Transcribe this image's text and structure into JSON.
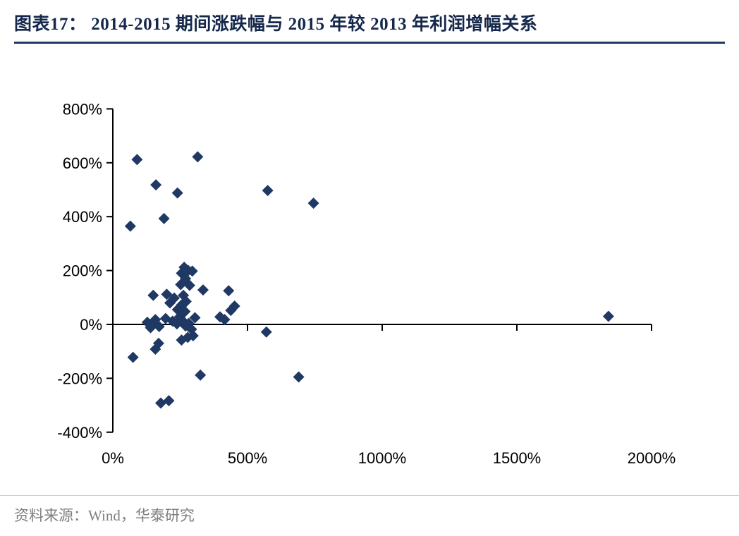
{
  "header": {
    "title": "图表17：  2014-2015 期间涨跌幅与 2015 年较 2013 年利润增幅关系"
  },
  "footer": {
    "source": "资料来源：Wind，华泰研究"
  },
  "chart_data": {
    "type": "scatter",
    "title": "",
    "xlabel": "",
    "ylabel": "",
    "xlim": [
      0,
      2000
    ],
    "ylim": [
      -400,
      800
    ],
    "x_ticks": {
      "values": [
        0,
        500,
        1000,
        1500,
        2000
      ],
      "labels": [
        "0%",
        "500%",
        "1000%",
        "1500%",
        "2000%"
      ]
    },
    "y_ticks": {
      "values": [
        800,
        600,
        400,
        200,
        0,
        -200,
        -400
      ],
      "labels": [
        "800%",
        "600%",
        "400%",
        "200%",
        "0%",
        "-200%",
        "-400%"
      ]
    },
    "marker": {
      "shape": "diamond",
      "color": "#1F3864",
      "size": 8
    },
    "grid": false,
    "legend": "none",
    "points": [
      {
        "x": 65,
        "y": 365
      },
      {
        "x": 90,
        "y": 612
      },
      {
        "x": 160,
        "y": 518
      },
      {
        "x": 190,
        "y": 393
      },
      {
        "x": 240,
        "y": 488
      },
      {
        "x": 315,
        "y": 622
      },
      {
        "x": 575,
        "y": 497
      },
      {
        "x": 745,
        "y": 450
      },
      {
        "x": 265,
        "y": 212
      },
      {
        "x": 280,
        "y": 200
      },
      {
        "x": 255,
        "y": 190
      },
      {
        "x": 295,
        "y": 198
      },
      {
        "x": 270,
        "y": 170
      },
      {
        "x": 252,
        "y": 148
      },
      {
        "x": 285,
        "y": 145
      },
      {
        "x": 335,
        "y": 128
      },
      {
        "x": 150,
        "y": 108
      },
      {
        "x": 200,
        "y": 112
      },
      {
        "x": 228,
        "y": 98
      },
      {
        "x": 262,
        "y": 108
      },
      {
        "x": 212,
        "y": 80
      },
      {
        "x": 255,
        "y": 72
      },
      {
        "x": 272,
        "y": 85
      },
      {
        "x": 430,
        "y": 125
      },
      {
        "x": 452,
        "y": 68
      },
      {
        "x": 438,
        "y": 52
      },
      {
        "x": 240,
        "y": 55
      },
      {
        "x": 268,
        "y": 48
      },
      {
        "x": 128,
        "y": 8
      },
      {
        "x": 140,
        "y": -12
      },
      {
        "x": 150,
        "y": 2
      },
      {
        "x": 158,
        "y": 18
      },
      {
        "x": 172,
        "y": -8
      },
      {
        "x": 196,
        "y": 22
      },
      {
        "x": 222,
        "y": 12
      },
      {
        "x": 238,
        "y": 2
      },
      {
        "x": 248,
        "y": 28
      },
      {
        "x": 258,
        "y": 15
      },
      {
        "x": 270,
        "y": -6
      },
      {
        "x": 282,
        "y": 4
      },
      {
        "x": 292,
        "y": -18
      },
      {
        "x": 305,
        "y": 25
      },
      {
        "x": 398,
        "y": 28
      },
      {
        "x": 415,
        "y": 18
      },
      {
        "x": 570,
        "y": -28
      },
      {
        "x": 1840,
        "y": 30
      },
      {
        "x": 75,
        "y": -122
      },
      {
        "x": 158,
        "y": -92
      },
      {
        "x": 170,
        "y": -70
      },
      {
        "x": 255,
        "y": -58
      },
      {
        "x": 278,
        "y": -48
      },
      {
        "x": 298,
        "y": -42
      },
      {
        "x": 325,
        "y": -188
      },
      {
        "x": 690,
        "y": -195
      },
      {
        "x": 178,
        "y": -292
      },
      {
        "x": 208,
        "y": -283
      }
    ]
  }
}
